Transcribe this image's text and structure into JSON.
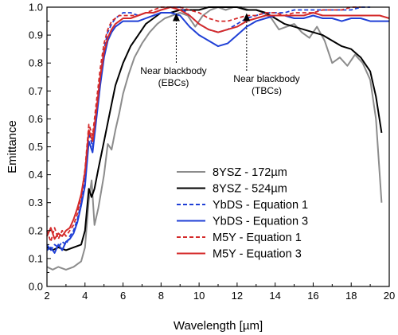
{
  "chart_data": {
    "type": "line",
    "xlabel": "Wavelength [µm]",
    "ylabel": "Emittance",
    "xlim": [
      2,
      20
    ],
    "ylim": [
      0,
      1
    ],
    "xticks": [
      "2",
      "4",
      "6",
      "8",
      "10",
      "12",
      "14",
      "16",
      "18",
      "20"
    ],
    "yticks": [
      "0.0",
      "0.1",
      "0.2",
      "0.3",
      "0.4",
      "0.5",
      "0.6",
      "0.7",
      "0.8",
      "0.9",
      "1.0"
    ],
    "grid": false,
    "legend_position": "lower-right",
    "series": [
      {
        "name": "8YSZ - 172µm",
        "color": "#8c8c8c",
        "dash": "solid",
        "x": [
          2.0,
          2.3,
          2.6,
          3.0,
          3.4,
          3.8,
          4.0,
          4.2,
          4.35,
          4.5,
          4.7,
          5.0,
          5.2,
          5.4,
          5.6,
          5.8,
          6.0,
          6.3,
          6.6,
          7.0,
          7.4,
          7.8,
          8.2,
          8.6,
          9.0,
          9.4,
          9.8,
          10.2,
          10.6,
          11.0,
          11.4,
          11.8,
          12.2,
          12.6,
          13.0,
          13.4,
          13.8,
          14.2,
          14.6,
          15.0,
          15.4,
          15.8,
          16.2,
          16.6,
          17.0,
          17.4,
          17.8,
          18.2,
          18.6,
          19.0,
          19.3,
          19.6
        ],
        "values": [
          0.07,
          0.06,
          0.07,
          0.06,
          0.07,
          0.09,
          0.14,
          0.31,
          0.38,
          0.22,
          0.28,
          0.4,
          0.51,
          0.49,
          0.56,
          0.62,
          0.69,
          0.76,
          0.82,
          0.87,
          0.91,
          0.94,
          0.96,
          0.97,
          0.98,
          0.97,
          0.93,
          0.97,
          0.99,
          1.0,
          0.99,
          1.0,
          1.0,
          0.99,
          0.99,
          0.98,
          0.96,
          0.92,
          0.93,
          0.94,
          0.91,
          0.89,
          0.93,
          0.88,
          0.8,
          0.82,
          0.79,
          0.83,
          0.8,
          0.74,
          0.6,
          0.3
        ]
      },
      {
        "name": "8YSZ - 524µm",
        "color": "#000000",
        "dash": "solid",
        "x": [
          2.0,
          2.3,
          2.6,
          3.0,
          3.4,
          3.8,
          4.0,
          4.2,
          4.35,
          4.5,
          4.7,
          5.0,
          5.3,
          5.6,
          6.0,
          6.4,
          6.8,
          7.2,
          7.6,
          8.0,
          8.5,
          9.0,
          9.5,
          10.0,
          10.5,
          11.0,
          11.5,
          12.0,
          12.5,
          13.0,
          13.5,
          14.0,
          14.5,
          15.0,
          15.5,
          16.0,
          16.5,
          17.0,
          17.5,
          18.0,
          18.5,
          19.0,
          19.3,
          19.6
        ],
        "values": [
          0.14,
          0.13,
          0.14,
          0.13,
          0.14,
          0.15,
          0.2,
          0.35,
          0.32,
          0.35,
          0.42,
          0.52,
          0.62,
          0.72,
          0.8,
          0.86,
          0.9,
          0.94,
          0.96,
          0.98,
          0.98,
          0.99,
          0.99,
          0.99,
          1.0,
          1.0,
          1.0,
          1.0,
          0.99,
          0.99,
          0.98,
          0.96,
          0.94,
          0.93,
          0.92,
          0.91,
          0.9,
          0.88,
          0.86,
          0.85,
          0.82,
          0.77,
          0.68,
          0.55
        ]
      },
      {
        "name": "YbDS - Equation 1",
        "color": "#1f3fd6",
        "dash": "dashed",
        "x": [
          2.0,
          2.2,
          2.4,
          2.6,
          2.8,
          3.0,
          3.2,
          3.4,
          3.6,
          3.8,
          4.0,
          4.2,
          4.4,
          4.6,
          4.8,
          5.0,
          5.2,
          5.4,
          5.6,
          5.8,
          6.0,
          6.4,
          6.8,
          7.2,
          7.6,
          8.0,
          8.5,
          9.0,
          9.5,
          10.0,
          10.5,
          11.0,
          11.5,
          12.0,
          12.5,
          13.0,
          13.5,
          14.0,
          14.5,
          15.0,
          15.5,
          16.0,
          16.5,
          17.0,
          17.5,
          18.0,
          18.5,
          19.0
        ],
        "values": [
          0.15,
          0.13,
          0.15,
          0.14,
          0.16,
          0.15,
          0.18,
          0.2,
          0.24,
          0.3,
          0.38,
          0.55,
          0.5,
          0.62,
          0.75,
          0.85,
          0.91,
          0.94,
          0.96,
          0.97,
          0.98,
          0.98,
          0.97,
          0.98,
          0.98,
          0.99,
          1.0,
          1.0,
          0.97,
          0.94,
          0.92,
          0.91,
          0.92,
          0.94,
          0.96,
          0.97,
          0.98,
          0.98,
          0.98,
          0.99,
          0.99,
          0.99,
          0.99,
          0.99,
          0.99,
          0.99,
          1.0,
          1.0
        ]
      },
      {
        "name": "YbDS - Equation 3",
        "color": "#1f3fd6",
        "dash": "solid",
        "x": [
          2.0,
          2.2,
          2.4,
          2.6,
          2.8,
          3.0,
          3.2,
          3.4,
          3.6,
          3.8,
          4.0,
          4.2,
          4.4,
          4.6,
          4.8,
          5.0,
          5.2,
          5.4,
          5.6,
          5.8,
          6.0,
          6.4,
          6.8,
          7.2,
          7.6,
          8.0,
          8.5,
          9.0,
          9.5,
          10.0,
          10.5,
          11.0,
          11.5,
          12.0,
          12.5,
          13.0,
          13.5,
          14.0,
          14.5,
          15.0,
          15.5,
          16.0,
          16.5,
          17.0,
          17.5,
          18.0,
          18.5,
          19.0,
          19.5,
          20.0
        ],
        "values": [
          0.13,
          0.14,
          0.12,
          0.15,
          0.13,
          0.16,
          0.17,
          0.19,
          0.23,
          0.29,
          0.36,
          0.52,
          0.48,
          0.6,
          0.72,
          0.82,
          0.88,
          0.91,
          0.93,
          0.94,
          0.95,
          0.95,
          0.95,
          0.96,
          0.97,
          0.98,
          0.98,
          0.97,
          0.93,
          0.9,
          0.88,
          0.86,
          0.87,
          0.9,
          0.93,
          0.95,
          0.96,
          0.97,
          0.97,
          0.96,
          0.96,
          0.97,
          0.96,
          0.96,
          0.95,
          0.96,
          0.96,
          0.95,
          0.95,
          0.95
        ]
      },
      {
        "name": "M5Y - Equation 1",
        "color": "#d42a2a",
        "dash": "dashed",
        "x": [
          2.0,
          2.2,
          2.4,
          2.6,
          2.8,
          3.0,
          3.2,
          3.4,
          3.6,
          3.8,
          4.0,
          4.2,
          4.4,
          4.6,
          4.8,
          5.0,
          5.2,
          5.4,
          5.6,
          5.8,
          6.0,
          6.4,
          6.8,
          7.2,
          7.6,
          8.0,
          8.5,
          9.0,
          9.5,
          10.0,
          10.5,
          11.0,
          11.5,
          12.0,
          12.5,
          13.0,
          13.5,
          14.0,
          14.5,
          15.0,
          15.5,
          16.0,
          16.5,
          17.0,
          17.5,
          18.0,
          18.5
        ],
        "values": [
          0.2,
          0.16,
          0.21,
          0.17,
          0.2,
          0.18,
          0.2,
          0.22,
          0.26,
          0.32,
          0.42,
          0.58,
          0.54,
          0.66,
          0.78,
          0.87,
          0.92,
          0.95,
          0.96,
          0.97,
          0.97,
          0.97,
          0.97,
          0.98,
          0.99,
          1.0,
          1.0,
          1.0,
          0.99,
          0.98,
          0.96,
          0.95,
          0.95,
          0.96,
          0.97,
          0.97,
          0.98,
          0.98,
          0.97,
          0.98,
          0.98,
          0.98,
          0.99,
          0.99,
          0.99,
          1.0,
          1.0
        ]
      },
      {
        "name": "M5Y - Equation 3",
        "color": "#d42a2a",
        "dash": "solid",
        "x": [
          2.0,
          2.2,
          2.4,
          2.6,
          2.8,
          3.0,
          3.2,
          3.4,
          3.6,
          3.8,
          4.0,
          4.2,
          4.4,
          4.6,
          4.8,
          5.0,
          5.2,
          5.4,
          5.6,
          5.8,
          6.0,
          6.4,
          6.8,
          7.2,
          7.6,
          8.0,
          8.5,
          9.0,
          9.5,
          10.0,
          10.5,
          11.0,
          11.5,
          12.0,
          12.5,
          13.0,
          13.5,
          14.0,
          14.5,
          15.0,
          15.5,
          16.0,
          16.5,
          17.0,
          17.5,
          18.0,
          18.5,
          19.0,
          19.5,
          20.0
        ],
        "values": [
          0.18,
          0.21,
          0.17,
          0.19,
          0.18,
          0.2,
          0.21,
          0.24,
          0.28,
          0.33,
          0.41,
          0.56,
          0.52,
          0.63,
          0.75,
          0.84,
          0.89,
          0.92,
          0.94,
          0.95,
          0.96,
          0.96,
          0.97,
          0.98,
          0.98,
          0.99,
          1.0,
          0.99,
          0.97,
          0.94,
          0.92,
          0.91,
          0.92,
          0.93,
          0.95,
          0.96,
          0.97,
          0.97,
          0.97,
          0.97,
          0.97,
          0.98,
          0.97,
          0.97,
          0.97,
          0.97,
          0.97,
          0.97,
          0.97,
          0.96
        ]
      }
    ],
    "annotations": [
      {
        "lines": [
          "Near blackbody",
          "(EBCs)"
        ],
        "arrow_x": 8.8,
        "arrow_y": 0.99
      },
      {
        "lines": [
          "Near blackbody",
          "(TBCs)"
        ],
        "arrow_x": 12.5,
        "arrow_y": 0.99
      }
    ]
  }
}
